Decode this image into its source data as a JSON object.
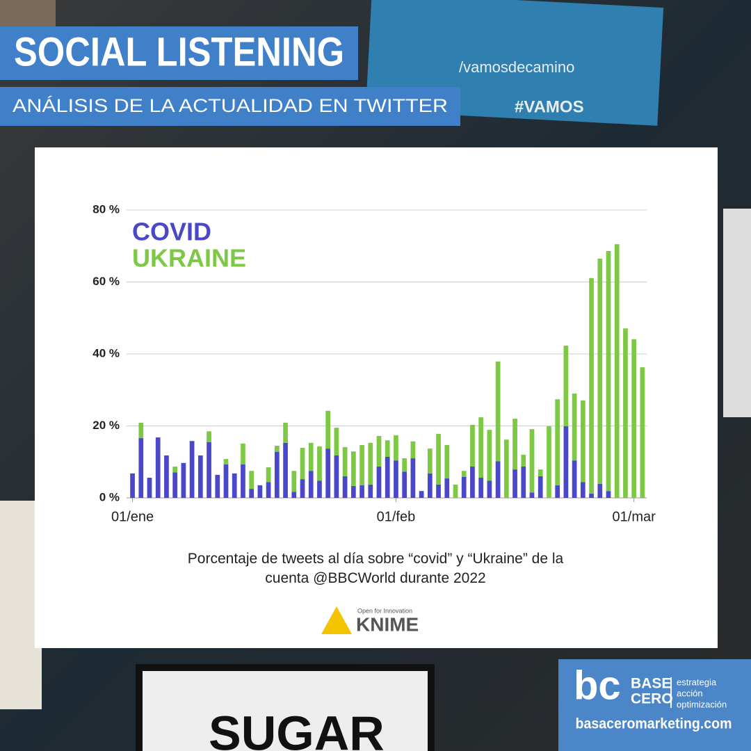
{
  "header": {
    "title": "SOCIAL LISTENING",
    "subtitle": "ANÁLISIS DE LA ACTUALIDAD EN TWITTER"
  },
  "background": {
    "handle": "/vamosdecamino",
    "hashtag": "#VAMOS",
    "sign": "SUGAR"
  },
  "chart_data": {
    "type": "bar",
    "stacked": true,
    "caption": "Porcentaje de tweets al día sobre “covid” y “Ukraine” de la cuenta @BBCWorld durante 2022",
    "x": [
      0,
      1,
      2,
      3,
      4,
      5,
      6,
      7,
      8,
      9,
      10,
      11,
      12,
      13,
      14,
      15,
      16,
      17,
      18,
      19,
      20,
      21,
      22,
      23,
      24,
      25,
      26,
      27,
      28,
      29,
      30,
      31,
      32,
      33,
      34,
      35,
      36,
      37,
      38,
      39,
      40,
      41,
      42,
      43,
      44,
      45,
      46,
      47,
      48,
      49,
      50,
      51,
      52,
      53,
      54,
      55,
      56,
      57,
      58,
      59,
      60
    ],
    "xlim": [
      -0.7,
      60.5
    ],
    "xticks": [
      {
        "value": 0,
        "label": "01/ene"
      },
      {
        "value": 31,
        "label": "01/feb"
      },
      {
        "value": 59,
        "label": "01/mar"
      }
    ],
    "ylim": [
      0,
      80
    ],
    "yticks": [
      {
        "value": 0,
        "label": "0 %"
      },
      {
        "value": 20,
        "label": "20 %"
      },
      {
        "value": 40,
        "label": "40 %"
      },
      {
        "value": 60,
        "label": "60 %"
      },
      {
        "value": 80,
        "label": "80 %"
      }
    ],
    "grid": true,
    "series": [
      {
        "name": "COVID",
        "color": "#4b47c9",
        "values": [
          6.8,
          16.6,
          5.6,
          16.8,
          11.8,
          7.1,
          9.7,
          15.8,
          11.8,
          15.5,
          6.4,
          9.3,
          6.8,
          9.3,
          2.5,
          3.5,
          4.4,
          12.8,
          15.3,
          1.7,
          5.2,
          7.5,
          4.8,
          13.7,
          11.8,
          6.0,
          3.3,
          3.5,
          3.7,
          8.7,
          11.4,
          10.4,
          7.3,
          11.0,
          1.9,
          6.8,
          3.7,
          5.4,
          0,
          5.8,
          8.7,
          5.6,
          4.8,
          10.2,
          0,
          7.9,
          8.7,
          1.5,
          6.0,
          0,
          3.5,
          19.9,
          10.4,
          4.4,
          1.2,
          3.9,
          1.9,
          0,
          0,
          0,
          0
        ]
      },
      {
        "name": "UKRAINE",
        "color": "#7dc945",
        "values": [
          0,
          4.3,
          0,
          0,
          0,
          1.6,
          0,
          0,
          0,
          3.0,
          0,
          1.5,
          0,
          5.8,
          5.0,
          0,
          4.1,
          1.7,
          5.6,
          5.8,
          8.7,
          7.8,
          9.5,
          10.5,
          7.7,
          8.1,
          9.6,
          11.2,
          11.6,
          8.5,
          4.6,
          7.0,
          3.7,
          4.7,
          0,
          6.9,
          14.1,
          9.3,
          3.7,
          1.7,
          11.6,
          16.8,
          14.1,
          27.7,
          16.2,
          14.1,
          3.3,
          17.6,
          1.9,
          19.9,
          23.9,
          22.4,
          18.6,
          22.7,
          59.9,
          62.6,
          66.7,
          70.5,
          47.1,
          44.1,
          36.3
        ]
      }
    ]
  },
  "credit": {
    "tagline": "Open for Innovation",
    "brand": "KNIME"
  },
  "logo": {
    "word1": "BASE",
    "word2": "CERO",
    "line1": "estrategia",
    "line2": "acción",
    "line3": "optimización",
    "site": "basaceromarketing.com"
  }
}
